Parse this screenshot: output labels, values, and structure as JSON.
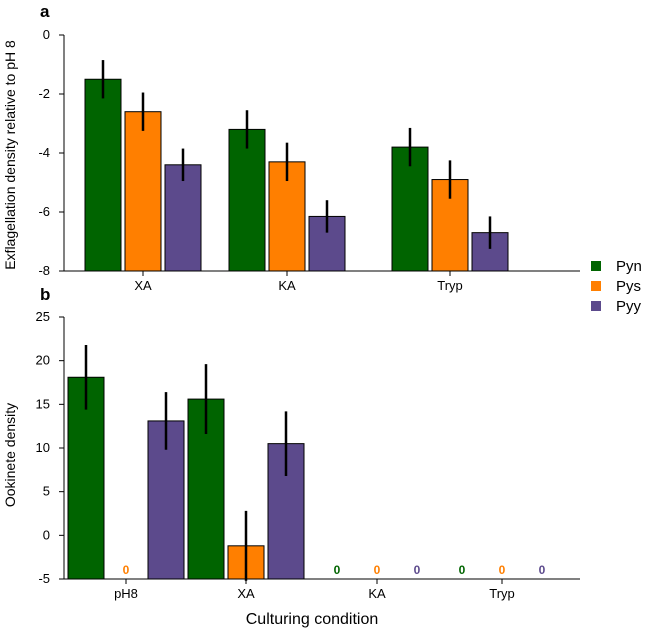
{
  "chart_data": [
    {
      "panel": "a",
      "type": "bar",
      "ylabel": "Exflagellation density relative to pH 8",
      "xlabel": "",
      "ylim": [
        -8,
        0
      ],
      "yticks": [
        "0",
        "-2",
        "-4",
        "-6",
        "-8"
      ],
      "ytick_values": [
        0,
        -2,
        -4,
        -6,
        -8
      ],
      "categories": [
        "XA",
        "KA",
        "Tryp"
      ],
      "series": [
        {
          "name": "Pyn",
          "color": "#006400",
          "values": [
            -1.5,
            -3.2,
            -3.8
          ],
          "errors": [
            0.65,
            0.65,
            0.65
          ]
        },
        {
          "name": "Pys",
          "color": "#FF7F00",
          "values": [
            -2.6,
            -4.3,
            -4.9
          ],
          "errors": [
            0.65,
            0.65,
            0.65
          ]
        },
        {
          "name": "Pyy",
          "color": "#5C4A8C",
          "values": [
            -4.4,
            -6.15,
            -6.7
          ],
          "errors": [
            0.55,
            0.55,
            0.55
          ]
        }
      ]
    },
    {
      "panel": "b",
      "type": "bar",
      "ylabel": "Ookinete density",
      "xlabel": "Culturing condition",
      "ylim": [
        -5,
        25
      ],
      "yticks": [
        "25",
        "20",
        "15",
        "10",
        "5",
        "0",
        "-5"
      ],
      "ytick_values": [
        25,
        20,
        15,
        10,
        5,
        0,
        -5
      ],
      "categories": [
        "pH8",
        "XA",
        "KA",
        "Tryp"
      ],
      "series": [
        {
          "name": "Pyn",
          "color": "#006400",
          "values": [
            18.1,
            15.6,
            null,
            null
          ],
          "errors": [
            3.7,
            4.0,
            null,
            null
          ],
          "zero_labels": [
            null,
            null,
            "0",
            "0"
          ]
        },
        {
          "name": "Pys",
          "color": "#FF7F00",
          "values": [
            null,
            -1.2,
            null,
            null
          ],
          "errors": [
            null,
            4.0,
            null,
            null
          ],
          "zero_labels": [
            "0",
            null,
            "0",
            "0"
          ]
        },
        {
          "name": "Pyy",
          "color": "#5C4A8C",
          "values": [
            13.1,
            10.5,
            null,
            null
          ],
          "errors": [
            3.3,
            3.7,
            null,
            null
          ],
          "zero_labels": [
            null,
            null,
            "0",
            "0"
          ]
        }
      ]
    }
  ],
  "legend": {
    "placement": "right",
    "items": [
      {
        "label": "Pyn",
        "color": "#006400"
      },
      {
        "label": "Pys",
        "color": "#FF7F00"
      },
      {
        "label": "Pyy",
        "color": "#5C4A8C"
      }
    ]
  }
}
